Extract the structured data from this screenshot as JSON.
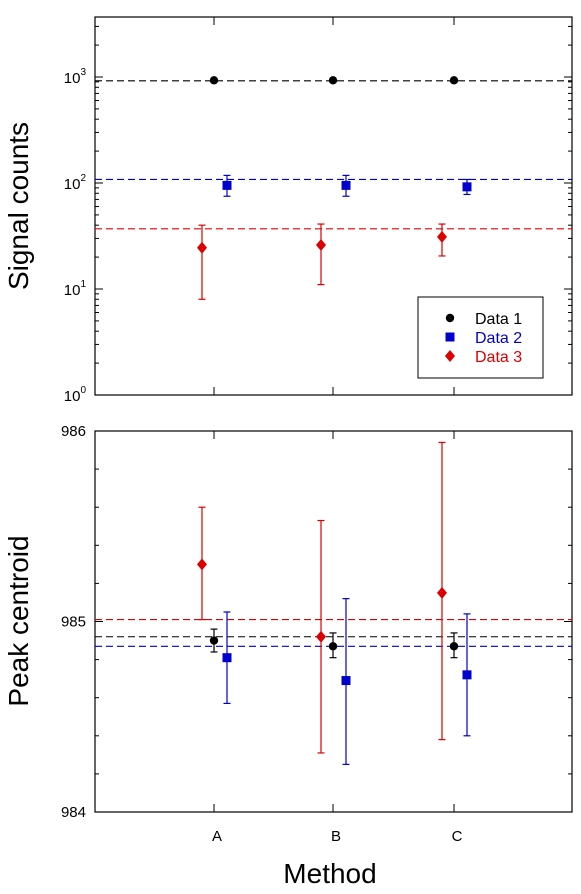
{
  "chart_data": [
    {
      "type": "scatter",
      "ylabel": "Signal counts",
      "yscale": "log",
      "ylim": [
        1,
        3000
      ],
      "categories": [
        "A",
        "B",
        "C"
      ],
      "y_ticks": [
        {
          "base": "10",
          "exp": "0",
          "value": 1
        },
        {
          "base": "10",
          "exp": "1",
          "value": 10
        },
        {
          "base": "10",
          "exp": "2",
          "value": 100
        },
        {
          "base": "10",
          "exp": "3",
          "value": 1000
        }
      ],
      "legend": {
        "position": "bottom-right"
      },
      "series": [
        {
          "name": "Data 1",
          "color": "#000000",
          "marker": "circle",
          "values": [
            930,
            930,
            930
          ],
          "err_low": [
            930,
            930,
            930
          ],
          "err_high": [
            930,
            930,
            930
          ],
          "reference": 920
        },
        {
          "name": "Data 2",
          "color": "#0000cc",
          "marker": "square",
          "values": [
            95,
            95,
            92
          ],
          "err_low": [
            75,
            75,
            78
          ],
          "err_high": [
            118,
            118,
            108
          ],
          "reference": 108
        },
        {
          "name": "Data 3",
          "color": "#dd0000",
          "marker": "diamond",
          "values": [
            24.5,
            26,
            31
          ],
          "err_low": [
            8,
            11,
            20.5
          ],
          "err_high": [
            40,
            41,
            41
          ],
          "reference": 37
        }
      ]
    },
    {
      "type": "scatter",
      "xlabel": "Method",
      "ylabel": "Peak centroid",
      "ylim": [
        984,
        986
      ],
      "categories": [
        "A",
        "B",
        "C"
      ],
      "y_ticks": [
        "984",
        "985",
        "986"
      ],
      "x_ticks": [
        "A",
        "B",
        "C"
      ],
      "series": [
        {
          "name": "Data 1",
          "color": "#000000",
          "marker": "circle",
          "values": [
            984.9,
            984.87,
            984.87
          ],
          "err_low": [
            984.84,
            984.81,
            984.81
          ],
          "err_high": [
            984.96,
            984.94,
            984.94
          ],
          "reference": 984.92
        },
        {
          "name": "Data 2",
          "color": "#0000cc",
          "marker": "square",
          "values": [
            984.81,
            984.69,
            984.72
          ],
          "err_low": [
            984.57,
            984.25,
            984.4
          ],
          "err_high": [
            985.05,
            985.12,
            985.04
          ],
          "reference": 984.87
        },
        {
          "name": "Data 3",
          "color": "#dd0000",
          "marker": "diamond",
          "values": [
            985.3,
            984.92,
            985.15
          ],
          "err_low": [
            985.01,
            984.31,
            984.38
          ],
          "err_high": [
            985.6,
            985.53,
            985.94
          ],
          "reference": 985.01
        }
      ]
    }
  ]
}
